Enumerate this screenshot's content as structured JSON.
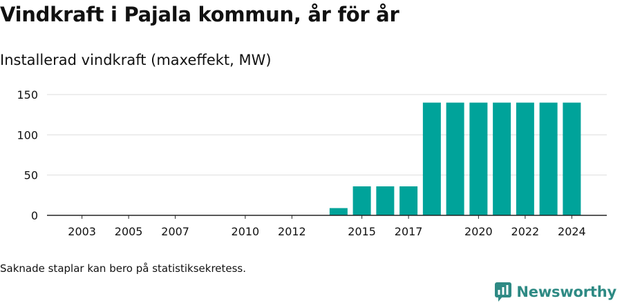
{
  "header": {
    "title": "Vindkraft i Pajala kommun, år för år",
    "subtitle": "Installerad vindkraft (maxeffekt, MW)"
  },
  "footer": {
    "note": "Saknade staplar kan bero på statistiksekretess.",
    "brand": "Newsworthy",
    "brand_icon": "newsworthy-logo-icon"
  },
  "colors": {
    "bar": "#00a39a",
    "grid": "#dddddd",
    "axis": "#222222",
    "brand": "#2e8a84"
  },
  "chart_data": {
    "type": "bar",
    "title": "Vindkraft i Pajala kommun, år för år",
    "subtitle": "Installerad vindkraft (maxeffekt, MW)",
    "xlabel": "",
    "ylabel": "",
    "ylim": [
      0,
      150
    ],
    "yticks": [
      0,
      50,
      100,
      150
    ],
    "xlim": [
      2001.5,
      2025.5
    ],
    "xticks": [
      2003,
      2005,
      2007,
      2010,
      2012,
      2015,
      2017,
      2020,
      2022,
      2024
    ],
    "grid": true,
    "legend": "none",
    "categories": [
      2014,
      2015,
      2016,
      2017,
      2018,
      2019,
      2020,
      2021,
      2022,
      2023,
      2024
    ],
    "values": [
      9,
      36,
      36,
      36,
      140,
      140,
      140,
      140,
      140,
      140,
      140
    ]
  }
}
